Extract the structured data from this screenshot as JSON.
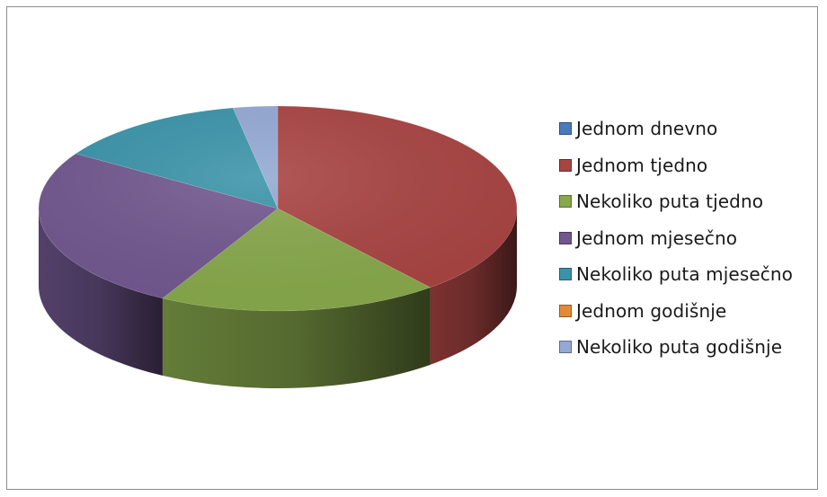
{
  "chart_data": {
    "type": "pie",
    "style": "3d",
    "categories": [
      "Jednom dnevno",
      "Jednom tjedno",
      "Nekoliko puta tjedno",
      "Jednom mjesečno",
      "Nekoliko puta mjesečno",
      "Jednom godišnje",
      "Nekoliko puta godišnje"
    ],
    "values": [
      0,
      39,
      19,
      26,
      13,
      0,
      3
    ],
    "unit": "%",
    "colors": [
      "#4a7ab8",
      "#a84442",
      "#87a84b",
      "#71578f",
      "#3a93a9",
      "#e08a3a",
      "#93a9d4"
    ],
    "legend_position": "right"
  }
}
